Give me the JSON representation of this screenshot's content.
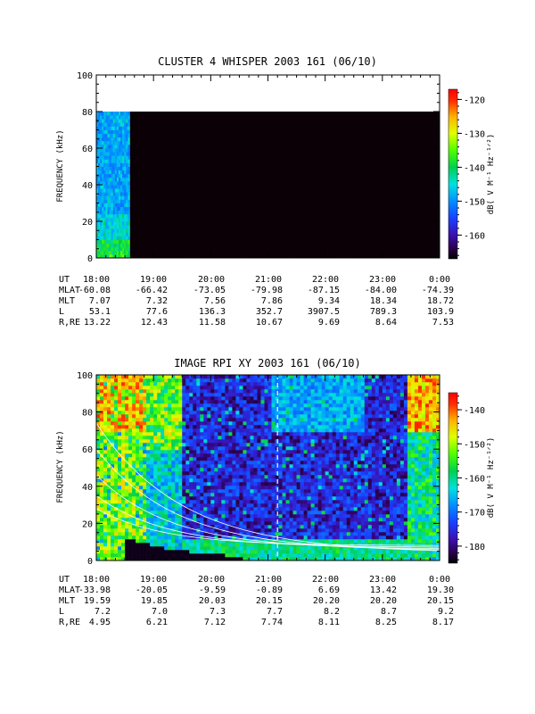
{
  "panels": [
    {
      "title": "CLUSTER 4 WHISPER 2003 161 (06/10)",
      "ylabel": "FREQUENCY (kHz)",
      "yticks": [
        "0",
        "20",
        "40",
        "60",
        "80",
        "100"
      ],
      "cbar_label": "dB( V M⁻¹ Hz⁻¹ᐟ²)",
      "cbar_ticks": [
        "-120",
        "-130",
        "-140",
        "-150",
        "-160"
      ],
      "rows": [
        {
          "label": "UT",
          "values": [
            "18:00",
            "19:00",
            "20:00",
            "21:00",
            "22:00",
            "23:00",
            "0:00"
          ]
        },
        {
          "label": "MLAT",
          "values": [
            "-60.08",
            "-66.42",
            "-73.05",
            "-79.98",
            "-87.15",
            "-84.00",
            "-74.39"
          ]
        },
        {
          "label": "MLT",
          "values": [
            "7.07",
            "7.32",
            "7.56",
            "7.86",
            "9.34",
            "18.34",
            "18.72"
          ]
        },
        {
          "label": "L",
          "values": [
            "53.1",
            "77.6",
            "136.3",
            "352.7",
            "3907.5",
            "789.3",
            "103.9"
          ]
        },
        {
          "label": "R,RE",
          "values": [
            "13.22",
            "12.43",
            "11.58",
            "10.67",
            "9.69",
            "8.64",
            "7.53"
          ]
        }
      ]
    },
    {
      "title": "IMAGE RPI XY 2003 161 (06/10)",
      "ylabel": "FREQUENCY (kHz)",
      "yticks": [
        "0",
        "20",
        "40",
        "60",
        "80",
        "100"
      ],
      "cbar_label": "dB( V M⁻¹ Hz⁻¹ᐟ²)",
      "cbar_ticks": [
        "-140",
        "-150",
        "-160",
        "-170",
        "-180"
      ],
      "rows": [
        {
          "label": "UT",
          "values": [
            "18:00",
            "19:00",
            "20:00",
            "21:00",
            "22:00",
            "23:00",
            "0:00"
          ]
        },
        {
          "label": "MLAT",
          "values": [
            "-33.98",
            "-20.05",
            "-9.59",
            "-0.89",
            "6.69",
            "13.42",
            "19.30"
          ]
        },
        {
          "label": "MLT",
          "values": [
            "19.59",
            "19.85",
            "20.03",
            "20.15",
            "20.20",
            "20.20",
            "20.15"
          ]
        },
        {
          "label": "L",
          "values": [
            "7.2",
            "7.0",
            "7.3",
            "7.7",
            "8.2",
            "8.7",
            "9.2"
          ]
        },
        {
          "label": "R,RE",
          "values": [
            "4.95",
            "6.21",
            "7.12",
            "7.74",
            "8.11",
            "8.25",
            "8.17"
          ]
        }
      ]
    }
  ],
  "chart_data": [
    {
      "type": "heatmap",
      "title": "CLUSTER 4 WHISPER 2003 161 (06/10)",
      "xlabel": "UT",
      "ylabel": "FREQUENCY (kHz)",
      "x_ticks": [
        "18:00",
        "19:00",
        "20:00",
        "21:00",
        "22:00",
        "23:00",
        "0:00"
      ],
      "ylim": [
        0,
        100
      ],
      "zlabel": "dB( V M⁻¹ Hz⁻¹ᐟ²)",
      "zlim": [
        -167,
        -117
      ],
      "data_extent": {
        "time_start": "18:00",
        "time_end": "18:35",
        "freq_max_khz": 80
      },
      "no_data_extent": {
        "time_start": "18:35",
        "time_end": "0:00",
        "freq_max_khz": 80
      }
    },
    {
      "type": "heatmap",
      "title": "IMAGE RPI XY 2003 161 (06/10)",
      "xlabel": "UT",
      "ylabel": "FREQUENCY (kHz)",
      "x_ticks": [
        "18:00",
        "19:00",
        "20:00",
        "21:00",
        "22:00",
        "23:00",
        "0:00"
      ],
      "ylim": [
        0,
        100
      ],
      "zlabel": "dB( V M⁻¹ Hz⁻¹ᐟ²)",
      "zlim": [
        -185,
        -135
      ],
      "vertical_marker_ut": "21:10"
    }
  ],
  "colors": {
    "no_data": "#0a0005",
    "axis": "#000000"
  }
}
